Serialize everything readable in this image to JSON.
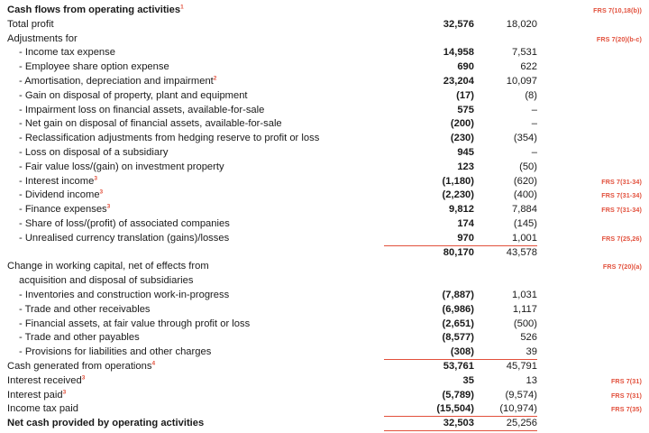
{
  "document": {
    "type": "consolidated-statement-of-cash-flows-extract",
    "accent_color": "#e2503c",
    "text_color": "#1a1a1a"
  },
  "rows": [
    {
      "label": "Cash flows from operating activities",
      "sup": "1",
      "bold": true,
      "indent": 0,
      "v1": "",
      "v2": "",
      "frs": "FRS 7(10,18(b))",
      "rule_below": false
    },
    {
      "label": "Total profit",
      "bold": false,
      "indent": 0,
      "v1": "32,576",
      "v2": "18,020",
      "frs": "",
      "rule_below": false
    },
    {
      "label": "Adjustments for",
      "bold": false,
      "indent": 0,
      "v1": "",
      "v2": "",
      "frs": "FRS 7(20)(b-c)",
      "rule_below": false
    },
    {
      "label": "- Income tax expense",
      "bold": false,
      "indent": 1,
      "v1": "14,958",
      "v2": "7,531",
      "frs": "",
      "rule_below": false
    },
    {
      "label": "- Employee share option expense",
      "bold": false,
      "indent": 1,
      "v1": "690",
      "v2": "622",
      "frs": "",
      "rule_below": false
    },
    {
      "label": "- Amortisation, depreciation and impairment",
      "sup": "2",
      "bold": false,
      "indent": 1,
      "v1": "23,204",
      "v2": "10,097",
      "frs": "",
      "rule_below": false
    },
    {
      "label": "- Gain on disposal of property, plant and equipment",
      "bold": false,
      "indent": 1,
      "v1": "(17)",
      "v2": "(8)",
      "frs": "",
      "rule_below": false
    },
    {
      "label": "- Impairment loss on financial assets, available-for-sale",
      "bold": false,
      "indent": 1,
      "v1": "575",
      "v2": "–",
      "frs": "",
      "rule_below": false
    },
    {
      "label": "- Net gain on disposal of financial assets, available-for-sale",
      "bold": false,
      "indent": 1,
      "v1": "(200)",
      "v2": "–",
      "frs": "",
      "rule_below": false
    },
    {
      "label": "- Reclassification adjustments from hedging reserve to profit or loss",
      "bold": false,
      "indent": 1,
      "v1": "(230)",
      "v2": "(354)",
      "frs": "",
      "rule_below": false
    },
    {
      "label": "- Loss on disposal of a subsidiary",
      "bold": false,
      "indent": 1,
      "v1": "945",
      "v2": "–",
      "frs": "",
      "rule_below": false
    },
    {
      "label": "- Fair value loss/(gain) on investment property",
      "bold": false,
      "indent": 1,
      "v1": "123",
      "v2": "(50)",
      "frs": "",
      "rule_below": false
    },
    {
      "label": "- Interest income",
      "sup": "3",
      "bold": false,
      "indent": 1,
      "v1": "(1,180)",
      "v2": "(620)",
      "frs": "FRS 7(31-34)",
      "rule_below": false
    },
    {
      "label": "- Dividend income",
      "sup": "3",
      "bold": false,
      "indent": 1,
      "v1": "(2,230)",
      "v2": "(400)",
      "frs": "FRS 7(31-34)",
      "rule_below": false
    },
    {
      "label": "- Finance expenses",
      "sup": "3",
      "bold": false,
      "indent": 1,
      "v1": "9,812",
      "v2": "7,884",
      "frs": "FRS 7(31-34)",
      "rule_below": false
    },
    {
      "label": "- Share of loss/(profit) of associated companies",
      "bold": false,
      "indent": 1,
      "v1": "174",
      "v2": "(145)",
      "frs": "",
      "rule_below": false
    },
    {
      "label": "- Unrealised currency translation (gains)/losses",
      "bold": false,
      "indent": 1,
      "v1": "970",
      "v2": "1,001",
      "frs": "FRS 7(25,26)",
      "rule_below": true
    },
    {
      "label": "",
      "bold": false,
      "indent": 0,
      "v1": "80,170",
      "v2": "43,578",
      "frs": "",
      "rule_below": false
    },
    {
      "label": "Change in working capital, net of effects from",
      "bold": false,
      "indent": 0,
      "v1": "",
      "v2": "",
      "frs": "FRS 7(20)(a)",
      "rule_below": false
    },
    {
      "label": "acquisition and disposal of subsidiaries",
      "bold": false,
      "indent": 1,
      "v1": "",
      "v2": "",
      "frs": "",
      "rule_below": false
    },
    {
      "label": "- Inventories and construction work-in-progress",
      "bold": false,
      "indent": 1,
      "v1": "(7,887)",
      "v2": "1,031",
      "frs": "",
      "rule_below": false
    },
    {
      "label": "- Trade and other receivables",
      "bold": false,
      "indent": 1,
      "v1": "(6,986)",
      "v2": "1,117",
      "frs": "",
      "rule_below": false
    },
    {
      "label": "- Financial assets, at fair value through profit or loss",
      "bold": false,
      "indent": 1,
      "v1": "(2,651)",
      "v2": "(500)",
      "frs": "",
      "rule_below": false
    },
    {
      "label": "- Trade and other payables",
      "bold": false,
      "indent": 1,
      "v1": "(8,577)",
      "v2": "526",
      "frs": "",
      "rule_below": false
    },
    {
      "label": "- Provisions for liabilities and other charges",
      "bold": false,
      "indent": 1,
      "v1": "(308)",
      "v2": "39",
      "frs": "",
      "rule_below": true
    },
    {
      "label": "Cash generated from operations",
      "sup": "4",
      "bold": false,
      "indent": 0,
      "v1": "53,761",
      "v2": "45,791",
      "frs": "",
      "rule_below": false
    },
    {
      "label": "Interest received",
      "sup": "3",
      "bold": false,
      "indent": 0,
      "v1": "35",
      "v2": "13",
      "frs": "FRS 7(31)",
      "rule_below": false
    },
    {
      "label": "Interest paid",
      "sup": "3",
      "bold": false,
      "indent": 0,
      "v1": "(5,789)",
      "v2": "(9,574)",
      "frs": "FRS 7(31)",
      "rule_below": false
    },
    {
      "label": "Income tax paid",
      "bold": false,
      "indent": 0,
      "v1": "(15,504)",
      "v2": "(10,974)",
      "frs": "FRS 7(35)",
      "rule_below": true
    },
    {
      "label": "Net cash provided by operating activities",
      "bold": true,
      "indent": 0,
      "v1": "32,503",
      "v2": "25,256",
      "frs": "",
      "rule_below": true
    }
  ]
}
